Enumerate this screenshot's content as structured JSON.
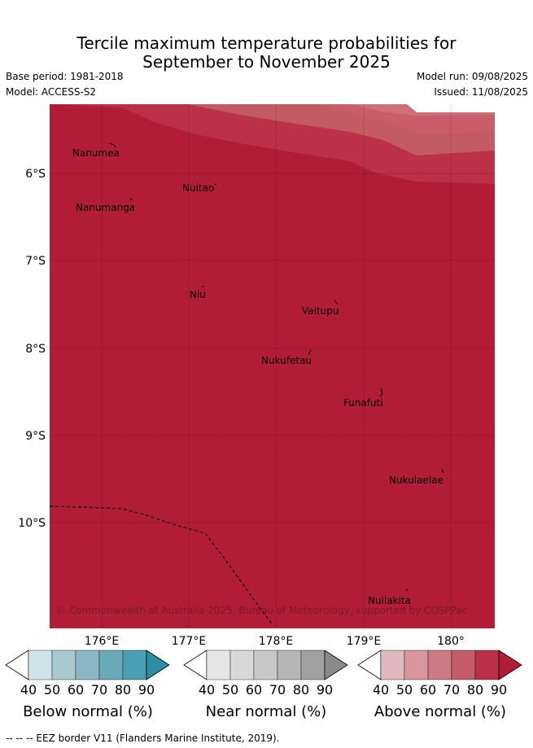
{
  "header": {
    "title_line1": "Tercile maximum temperature probabilities for",
    "title_line2": "September to November 2025",
    "base_period": "Base period: 1981-2018",
    "model": "Model: ACCESS-S2",
    "model_run": "Model run: 09/08/2025",
    "issued": "Issued: 11/08/2025"
  },
  "map": {
    "extent": {
      "lon_min": 175.4,
      "lon_max": 180.5,
      "lat_min": -11.2,
      "lat_max": -5.2
    },
    "lat_ticks": [
      "6°S",
      "7°S",
      "8°S",
      "9°S",
      "10°S"
    ],
    "lon_ticks": [
      "176°E",
      "177°E",
      "178°E",
      "179°E",
      "180°"
    ],
    "islands": [
      {
        "name": "Nanumea",
        "label": "Nanumea"
      },
      {
        "name": "Nuitao",
        "label": "Nuitao"
      },
      {
        "name": "Nanumanga",
        "label": "Nanumanga"
      },
      {
        "name": "Niu",
        "label": "Niu"
      },
      {
        "name": "Vaitupu",
        "label": "Vaitupu"
      },
      {
        "name": "Nukufetau",
        "label": "Nukufetau"
      },
      {
        "name": "Funafuti",
        "label": "Funafuti"
      },
      {
        "name": "Nukulaelae",
        "label": "Nukulaelae"
      },
      {
        "name": "Nuilakita",
        "label": "Nuilakita"
      }
    ],
    "copyright": "© Commonwealth of Australia 2025, Bureau of Meteorology, supported by COSPPac",
    "dominant_category": "Above normal 90%",
    "colors": {
      "above_90": "#b11d37",
      "above_80": "#bd3049",
      "above_70": "#c35b64",
      "above_60": "#cd7079",
      "above_50": "#da959c"
    }
  },
  "colorbars": [
    {
      "name": "below",
      "label": "Below normal (%)",
      "ticks": [
        "40",
        "50",
        "60",
        "70",
        "80",
        "90"
      ],
      "colors": [
        "#ffffff",
        "#cfe3ea",
        "#a9c9d0",
        "#8ab8c5",
        "#6aabbb",
        "#4aa0b2",
        "#2d8da2"
      ]
    },
    {
      "name": "near",
      "label": "Near normal (%)",
      "ticks": [
        "40",
        "50",
        "60",
        "70",
        "80",
        "90"
      ],
      "colors": [
        "#ffffff",
        "#e6e6e6",
        "#d8d8d8",
        "#c8c8c8",
        "#b6b6b6",
        "#a0a0a0",
        "#8a8a8a"
      ]
    },
    {
      "name": "above",
      "label": "Above normal (%)",
      "ticks": [
        "40",
        "50",
        "60",
        "70",
        "80",
        "90"
      ],
      "colors": [
        "#ffffff",
        "#e2b8bf",
        "#d8979e",
        "#cc7a83",
        "#c45c69",
        "#ba3049",
        "#b11d37"
      ]
    }
  ],
  "footer": "--  --  -- EEZ border V11 (Flanders Marine Institute, 2019)."
}
